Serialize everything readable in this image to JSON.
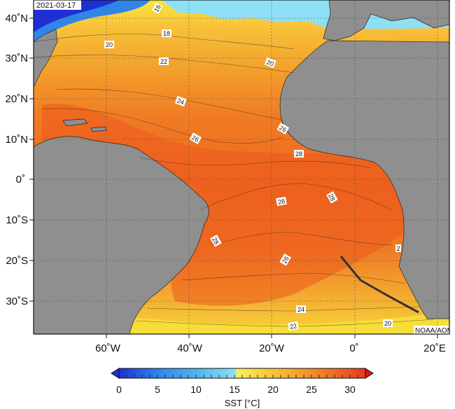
{
  "date": "2021-03-17",
  "credit": "NOAA/AOML",
  "map": {
    "lon_range": [
      -78,
      22
    ],
    "lat_range": [
      -38,
      42
    ],
    "lon_ticks": [
      "60˚W",
      "40˚W",
      "20˚W",
      "0˚",
      "20˚E"
    ],
    "lat_ticks": [
      "40˚N",
      "30˚N",
      "20˚N",
      "10˚N",
      "0˚",
      "10˚S",
      "20˚S",
      "30˚S"
    ],
    "grid": "dotted",
    "land_color": "#8f8f8f",
    "isotherm_labels": [
      "16",
      "18",
      "20",
      "20",
      "22",
      "24",
      "26",
      "26",
      "28",
      "28",
      "28",
      "28",
      "26",
      "24",
      "22",
      "20",
      "2"
    ]
  },
  "colorbar": {
    "label": "SST [°C]",
    "ticks": [
      "0",
      "5",
      "10",
      "15",
      "20",
      "25",
      "30"
    ],
    "range": [
      0,
      32
    ],
    "colors": [
      "#1f2fd6",
      "#2f86e8",
      "#4fb6ee",
      "#8fe0f4",
      "#f6f25a",
      "#f8c43a",
      "#f3992a",
      "#ee6a22",
      "#e83a1c"
    ]
  }
}
